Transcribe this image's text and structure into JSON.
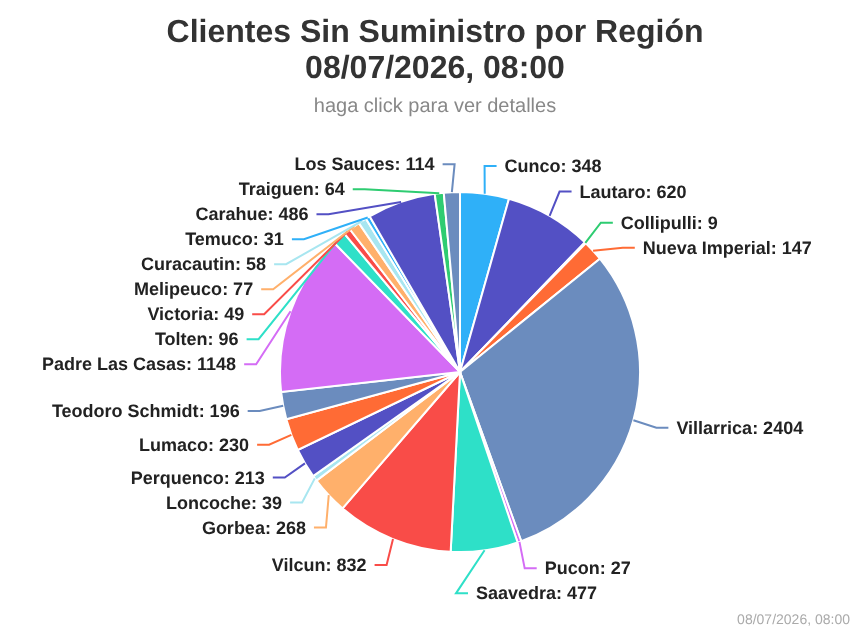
{
  "chart_data": {
    "type": "pie",
    "title": "Clientes Sin Suministro por Región\n08/07/2026, 08:00",
    "subtitle": "haga click para ver detalles",
    "categories": [
      "Cunco",
      "Lautaro",
      "Collipulli",
      "Nueva Imperial",
      "Villarrica",
      "Pucon",
      "Saavedra",
      "Vilcun",
      "Gorbea",
      "Loncoche",
      "Perquenco",
      "Lumaco",
      "Teodoro Schmidt",
      "Padre Las Casas",
      "Tolten",
      "Victoria",
      "Melipeuco",
      "Curacautin",
      "Temuco",
      "Carahue",
      "Traiguen",
      "Los Sauces"
    ],
    "values": [
      348,
      620,
      9,
      147,
      2404,
      27,
      477,
      832,
      268,
      39,
      213,
      230,
      196,
      1148,
      96,
      49,
      77,
      58,
      31,
      486,
      64,
      114
    ],
    "value_labels": [
      ": 348",
      ": 620",
      ": 9",
      ": 147",
      ": 2404",
      ": 27",
      ": 477",
      ": 832",
      ": 268",
      ": 39",
      ": 213",
      ": 230",
      ": 196",
      ": 1148",
      ": 96",
      ": 49",
      ": 77",
      ": 58",
      ": 31",
      ": 486",
      ": 64",
      ": 114"
    ],
    "colors": [
      "#2fb0f8",
      "#5350c4",
      "#2ecc71",
      "#ff6b35",
      "#6b8cbe",
      "#d46cf5",
      "#2ee0c8",
      "#f94c48",
      "#ffb06b",
      "#a8e6f0",
      "#5350c4",
      "#ff6b35",
      "#6b8cbe",
      "#d46cf5",
      "#2ee0c8",
      "#f94c48",
      "#ffb06b",
      "#a8e6f0",
      "#2fb0f8",
      "#5350c4",
      "#2ecc71",
      "#6b8cbe"
    ],
    "legend": false,
    "annotations": [
      "08/07/2026, 08:00"
    ]
  }
}
